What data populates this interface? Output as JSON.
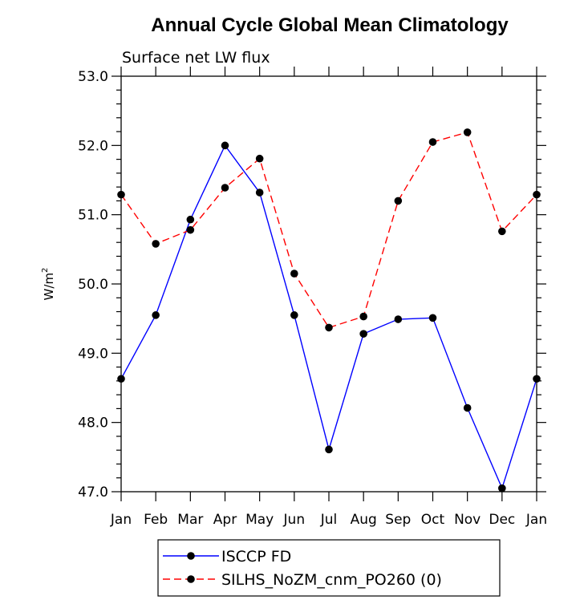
{
  "chart_data": {
    "type": "line",
    "title": "Annual Cycle Global Mean Climatology",
    "subtitle": "Surface net LW flux",
    "ylabel_base": "W/m",
    "ylabel_exponent": "2",
    "xlabel": "",
    "categories": [
      "Jan",
      "Feb",
      "Mar",
      "Apr",
      "May",
      "Jun",
      "Jul",
      "Aug",
      "Sep",
      "Oct",
      "Nov",
      "Dec",
      "Jan"
    ],
    "ylim": [
      47.0,
      53.0
    ],
    "yticks": [
      47.0,
      48.0,
      49.0,
      50.0,
      51.0,
      52.0,
      53.0
    ],
    "ytick_labels": [
      "47.0",
      "48.0",
      "49.0",
      "50.0",
      "51.0",
      "52.0",
      "53.0"
    ],
    "series": [
      {
        "name": "ISCCP FD",
        "color": "#0000ff",
        "dash": "solid",
        "values": [
          48.63,
          49.55,
          50.93,
          52.0,
          51.32,
          49.55,
          47.61,
          49.28,
          49.49,
          49.51,
          48.21,
          47.05,
          48.63
        ]
      },
      {
        "name": "SILHS_NoZM_cnm_PO260 (0)",
        "color": "#ff0000",
        "dash": "dashed",
        "values": [
          51.29,
          50.58,
          50.78,
          51.39,
          51.81,
          50.15,
          49.37,
          49.53,
          51.2,
          52.05,
          52.19,
          50.76,
          51.29
        ]
      }
    ],
    "grid": false,
    "legend_position": "bottom"
  }
}
